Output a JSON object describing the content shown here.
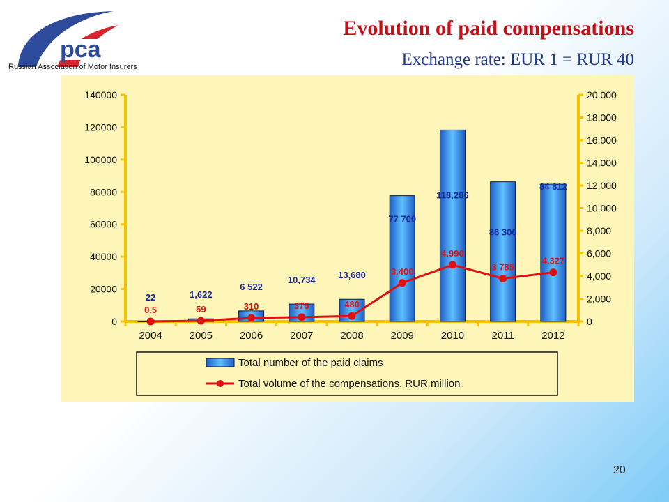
{
  "logo": {
    "brand": "pca",
    "caption": "Russian Association of Motor Insurers"
  },
  "header": {
    "title": "Evolution of paid compensations",
    "subtitle": "Exchange rate: EUR 1  = RUR 40"
  },
  "page_number": "20",
  "colors": {
    "bar": "#3a8fe6",
    "line": "#e01010",
    "axis": "#f5c400",
    "bar_label": "#1a2a9a",
    "line_label": "#e01010",
    "panel": "#fdf6b8"
  },
  "chart_data": {
    "type": "bar",
    "categories": [
      "2004",
      "2005",
      "2006",
      "2007",
      "2008",
      "2009",
      "2010",
      "2011",
      "2012"
    ],
    "series": [
      {
        "name": "Total number of the paid claims",
        "type": "bar",
        "axis": "left",
        "values": [
          22,
          1622,
          6522,
          10734,
          13680,
          77700,
          118286,
          86300,
          84812
        ],
        "labels": [
          "22",
          "1,622",
          "6 522",
          "10,734",
          "13,680",
          "77 700",
          "118,286",
          "86 300",
          "84 812"
        ]
      },
      {
        "name": "Total volume of the compensations, RUR million",
        "type": "line",
        "axis": "right",
        "values": [
          0.5,
          59,
          310,
          375,
          480,
          3400,
          4990,
          3785,
          4327
        ],
        "labels": [
          "0.5",
          "59",
          "310",
          "375",
          "480",
          "3.400",
          "4.990",
          "3 785",
          "4.327"
        ]
      }
    ],
    "y_left": {
      "range": [
        0,
        140000
      ],
      "ticks": [
        0,
        20000,
        40000,
        60000,
        80000,
        100000,
        120000,
        140000
      ],
      "tick_labels": [
        "0",
        "20000",
        "40000",
        "60000",
        "80000",
        "100000",
        "120000",
        "140000"
      ]
    },
    "y_right": {
      "range": [
        0,
        20000
      ],
      "ticks": [
        0,
        2000,
        4000,
        6000,
        8000,
        10000,
        12000,
        14000,
        16000,
        18000,
        20000
      ],
      "tick_labels": [
        "0",
        "2,000",
        "4,000",
        "6,000",
        "8,000",
        "10,000",
        "12,000",
        "14,000",
        "16,000",
        "18,000",
        "20,000"
      ]
    },
    "grid": false,
    "legend": "bottom"
  }
}
